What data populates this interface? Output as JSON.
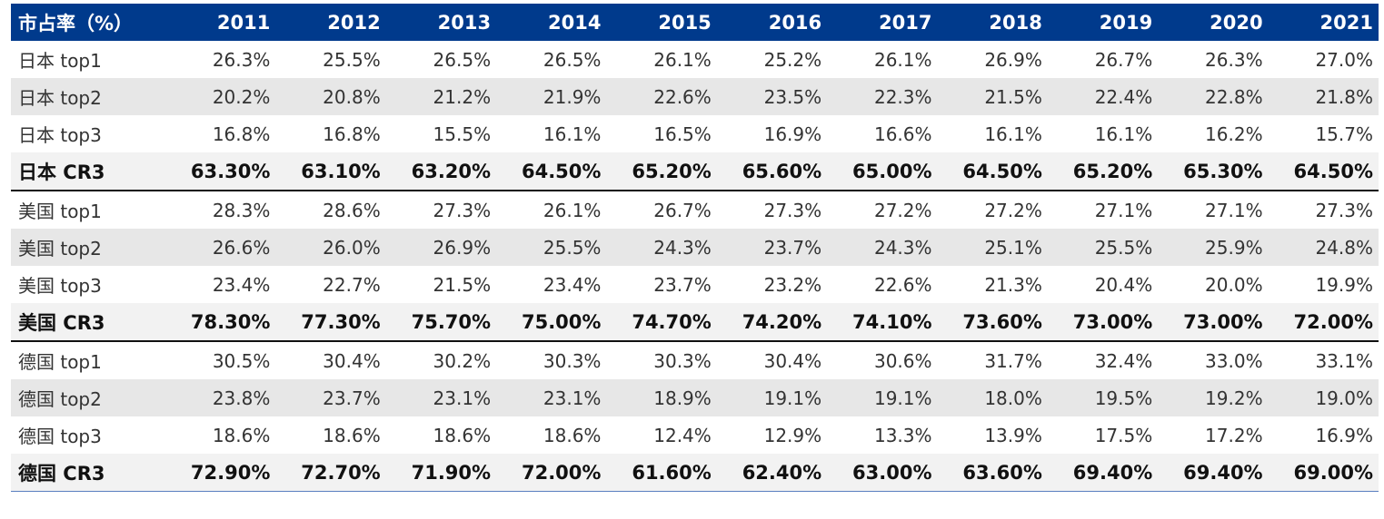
{
  "table": {
    "header": [
      "市占率（%）",
      "2011",
      "2012",
      "2013",
      "2014",
      "2015",
      "2016",
      "2017",
      "2018",
      "2019",
      "2020",
      "2021"
    ],
    "rows": [
      {
        "label": "日本 top1",
        "cells": [
          "26.3%",
          "25.5%",
          "26.5%",
          "26.5%",
          "26.1%",
          "25.2%",
          "26.1%",
          "26.9%",
          "26.7%",
          "26.3%",
          "27.0%"
        ]
      },
      {
        "label": "日本 top2",
        "cells": [
          "20.2%",
          "20.8%",
          "21.2%",
          "21.9%",
          "22.6%",
          "23.5%",
          "22.3%",
          "21.5%",
          "22.4%",
          "22.8%",
          "21.8%"
        ]
      },
      {
        "label": "日本 top3",
        "cells": [
          "16.8%",
          "16.8%",
          "15.5%",
          "16.1%",
          "16.5%",
          "16.9%",
          "16.6%",
          "16.1%",
          "16.1%",
          "16.2%",
          "15.7%"
        ]
      },
      {
        "label": "日本 CR3",
        "cells": [
          "63.30%",
          "63.10%",
          "63.20%",
          "64.50%",
          "65.20%",
          "65.60%",
          "65.00%",
          "64.50%",
          "65.20%",
          "65.30%",
          "64.50%"
        ]
      },
      {
        "label": "美国 top1",
        "cells": [
          "28.3%",
          "28.6%",
          "27.3%",
          "26.1%",
          "26.7%",
          "27.3%",
          "27.2%",
          "27.2%",
          "27.1%",
          "27.1%",
          "27.3%"
        ]
      },
      {
        "label": "美国 top2",
        "cells": [
          "26.6%",
          "26.0%",
          "26.9%",
          "25.5%",
          "24.3%",
          "23.7%",
          "24.3%",
          "25.1%",
          "25.5%",
          "25.9%",
          "24.8%"
        ]
      },
      {
        "label": "美国 top3",
        "cells": [
          "23.4%",
          "22.7%",
          "21.5%",
          "23.4%",
          "23.7%",
          "23.2%",
          "22.6%",
          "21.3%",
          "20.4%",
          "20.0%",
          "19.9%"
        ]
      },
      {
        "label": "美国 CR3",
        "cells": [
          "78.30%",
          "77.30%",
          "75.70%",
          "75.00%",
          "74.70%",
          "74.20%",
          "74.10%",
          "73.60%",
          "73.00%",
          "73.00%",
          "72.00%"
        ]
      },
      {
        "label": "德国 top1",
        "cells": [
          "30.5%",
          "30.4%",
          "30.2%",
          "30.3%",
          "30.3%",
          "30.4%",
          "30.6%",
          "31.7%",
          "32.4%",
          "33.0%",
          "33.1%"
        ]
      },
      {
        "label": "德国 top2",
        "cells": [
          "23.8%",
          "23.7%",
          "23.1%",
          "23.1%",
          "18.9%",
          "19.1%",
          "19.1%",
          "18.0%",
          "19.5%",
          "19.2%",
          "19.0%"
        ]
      },
      {
        "label": "德国 top3",
        "cells": [
          "18.6%",
          "18.6%",
          "18.6%",
          "18.6%",
          "12.4%",
          "12.9%",
          "13.3%",
          "13.9%",
          "17.5%",
          "17.2%",
          "16.9%"
        ]
      },
      {
        "label": "德国 CR3",
        "cells": [
          "72.90%",
          "72.70%",
          "71.90%",
          "72.00%",
          "61.60%",
          "62.40%",
          "63.00%",
          "63.60%",
          "69.40%",
          "69.40%",
          "69.00%"
        ]
      }
    ]
  },
  "colors": {
    "header_bg": "#003a8c",
    "header_text": "#ffffff",
    "alt_row_bg": "#e7e7e7"
  }
}
